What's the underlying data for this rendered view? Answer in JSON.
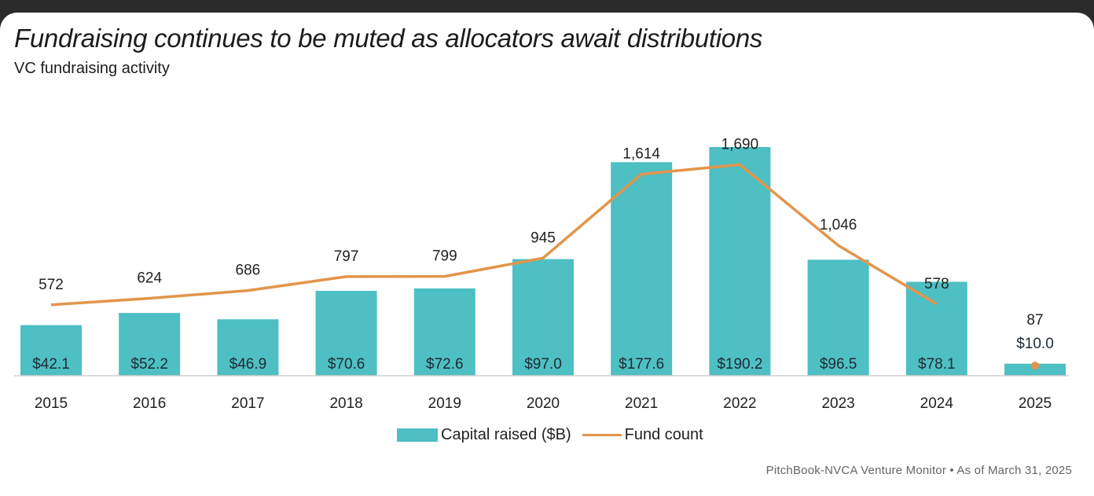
{
  "header": {
    "title": "Fundraising continues to be muted as allocators await distributions",
    "subtitle": "VC fundraising activity"
  },
  "chart_data": {
    "type": "bar",
    "categories": [
      "2015",
      "2016",
      "2017",
      "2018",
      "2019",
      "2020",
      "2021",
      "2022",
      "2023",
      "2024",
      "2025"
    ],
    "series": [
      {
        "name": "Capital raised ($B)",
        "type": "bar",
        "values": [
          42.1,
          52.2,
          46.9,
          70.6,
          72.6,
          97.0,
          177.6,
          190.2,
          96.5,
          78.1,
          10.0
        ],
        "labels": [
          "$42.1",
          "$52.2",
          "$46.9",
          "$70.6",
          "$72.6",
          "$97.0",
          "$177.6",
          "$190.2",
          "$96.5",
          "$78.1",
          "$10.0"
        ],
        "color": "#4ebfc3"
      },
      {
        "name": "Fund count",
        "type": "line",
        "values": [
          572,
          624,
          686,
          797,
          799,
          945,
          1614,
          1690,
          1046,
          578,
          87
        ],
        "labels": [
          "572",
          "624",
          "686",
          "797",
          "799",
          "945",
          "1,614",
          "1,690",
          "1,046",
          "578",
          "87"
        ],
        "color": "#e3954a"
      }
    ],
    "grid": false,
    "legend": "bottom-center"
  },
  "footer": {
    "source": "PitchBook-NVCA Venture Monitor  •  As of March 31, 2025"
  }
}
